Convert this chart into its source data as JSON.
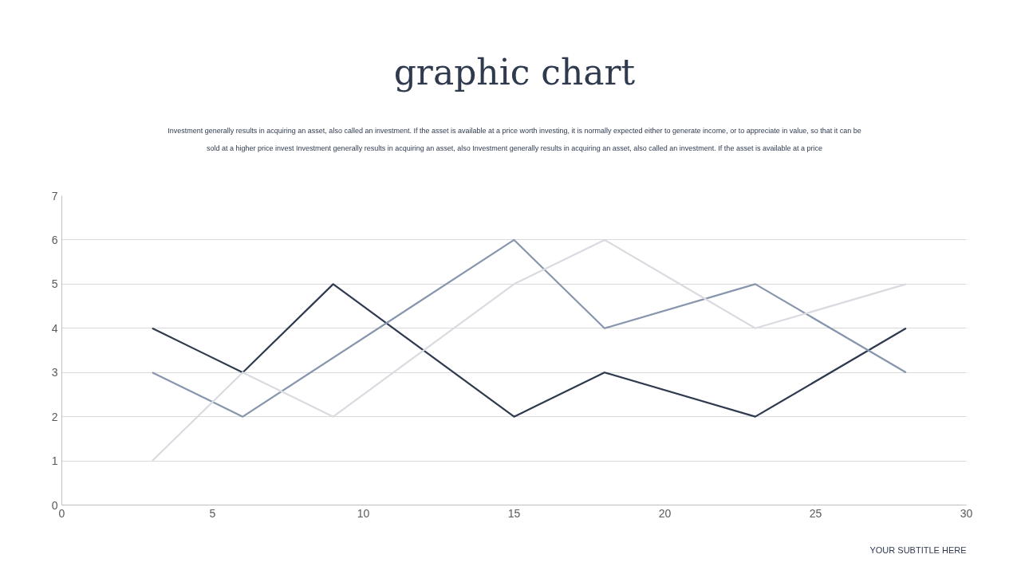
{
  "chart_data": {
    "type": "line",
    "title": "graphic chart",
    "subtitle": "Investment generally results in acquiring an asset, also called an investment. If the asset is available at a price worth investing, it is normally expected either to generate income, or to appreciate in value, so that it can be sold at a higher price invest Investment generally results in acquiring an asset, also Investment generally results in acquiring an asset, also called an investment. If the asset is available at a price",
    "annotations": [
      "YOUR SUBTITLE HERE"
    ],
    "series": [
      {
        "color": "#2f3a4f",
        "x": [
          3,
          6,
          9,
          15,
          18,
          23,
          28
        ],
        "values": [
          4,
          3,
          5,
          2,
          3,
          2,
          4
        ]
      },
      {
        "color": "#8796ad",
        "x": [
          3,
          6,
          15,
          18,
          23,
          28
        ],
        "values": [
          3,
          2,
          6,
          4,
          5,
          3
        ]
      },
      {
        "color": "#d9dbe0",
        "x": [
          3,
          6,
          9,
          15,
          18,
          23,
          28
        ],
        "values": [
          1,
          3,
          2,
          5,
          6,
          4,
          5
        ]
      }
    ],
    "xlim": [
      0,
      30
    ],
    "xticks": [
      0,
      5,
      10,
      15,
      20,
      25,
      30
    ],
    "ylim": [
      0,
      7
    ],
    "yticks": [
      0,
      1,
      2,
      3,
      4,
      5,
      6,
      7
    ],
    "grid": "y"
  }
}
